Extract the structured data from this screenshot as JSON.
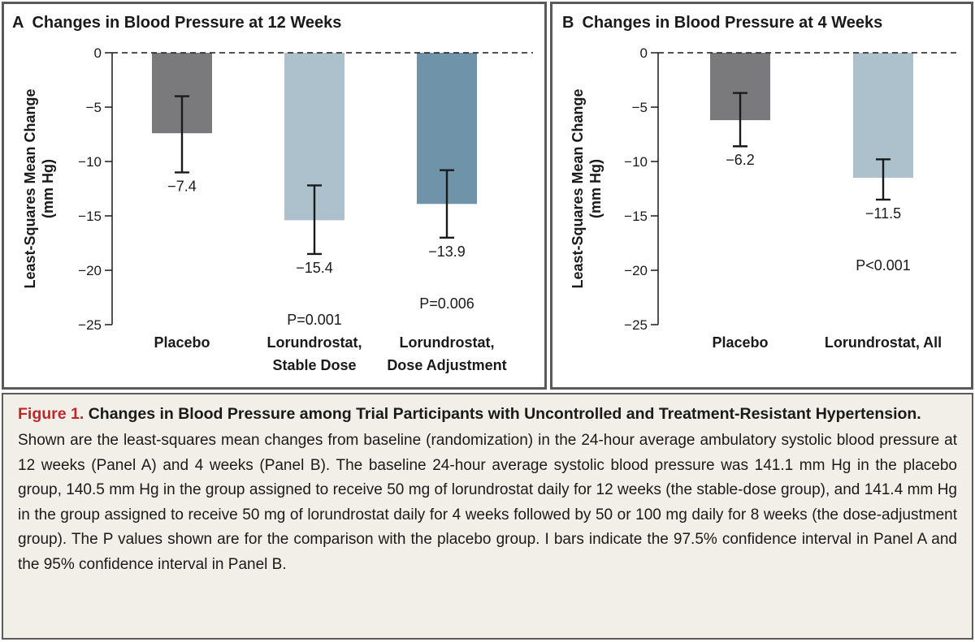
{
  "chart_data": [
    {
      "panel": "A",
      "type": "bar",
      "title": "Changes in Blood Pressure at 12 Weeks",
      "ylabel": [
        "Least-Squares Mean Change",
        "(mm Hg)"
      ],
      "ylim": [
        -25,
        0
      ],
      "yticks": [
        0,
        -5,
        -10,
        -15,
        -20,
        -25
      ],
      "ytick_labels": [
        "0",
        "−5",
        "−10",
        "−15",
        "−20",
        "−25"
      ],
      "categories": [
        [
          "Placebo"
        ],
        [
          "Lorundrostat,",
          "Stable Dose"
        ],
        [
          "Lorundrostat,",
          "Dose Adjustment"
        ]
      ],
      "values": [
        -7.4,
        -15.4,
        -13.9
      ],
      "value_labels": [
        "−7.4",
        "−15.4",
        "−13.9"
      ],
      "ci_low": [
        -11.0,
        -18.5,
        -17.0
      ],
      "ci_high": [
        -4.0,
        -12.2,
        -10.8
      ],
      "p_values": [
        "",
        "P=0.001",
        "P=0.006"
      ],
      "colors": [
        "#7a7a7c",
        "#adc1cd",
        "#6f93a8"
      ],
      "reference_line": 0
    },
    {
      "panel": "B",
      "type": "bar",
      "title": "Changes in Blood Pressure at 4 Weeks",
      "ylabel": [
        "Least-Squares Mean Change",
        "(mm Hg)"
      ],
      "ylim": [
        -25,
        0
      ],
      "yticks": [
        0,
        -5,
        -10,
        -15,
        -20,
        -25
      ],
      "ytick_labels": [
        "0",
        "−5",
        "−10",
        "−15",
        "−20",
        "−25"
      ],
      "categories": [
        [
          "Placebo"
        ],
        [
          "Lorundrostat, All"
        ]
      ],
      "values": [
        -6.2,
        -11.5
      ],
      "value_labels": [
        "−6.2",
        "−11.5"
      ],
      "ci_low": [
        -8.6,
        -13.5
      ],
      "ci_high": [
        -3.7,
        -9.8
      ],
      "p_values": [
        "",
        "P<0.001"
      ],
      "colors": [
        "#7a7a7c",
        "#adc1cd"
      ],
      "reference_line": 0
    }
  ],
  "panels": {
    "a": {
      "letter": "A",
      "title": "Changes in Blood Pressure at 12 Weeks"
    },
    "b": {
      "letter": "B",
      "title": "Changes in Blood Pressure at 4 Weeks"
    }
  },
  "caption": {
    "figure_number": "Figure 1.",
    "title": "Changes in Blood Pressure among Trial Participants with Uncontrolled and Treatment-Resistant Hypertension.",
    "body": "Shown are the least-squares mean changes from baseline (randomization) in the 24-hour average ambulatory systolic blood pressure at 12 weeks (Panel A) and 4 weeks (Panel B). The baseline 24-hour average systolic blood pressure was 141.1 mm Hg in the placebo group, 140.5 mm Hg in the group assigned to receive 50 mg of lorundrostat daily for 12 weeks (the stable-dose group), and 141.4 mm Hg in the group assigned to receive 50 mg of lorundrostat daily for 4 weeks followed by 50 or 100 mg daily for 8 weeks (the dose-adjustment group). The P values shown are for the comparison with the placebo group. I bars indicate the 97.5% confidence interval in Panel A and the 95% confidence interval in Panel B."
  }
}
